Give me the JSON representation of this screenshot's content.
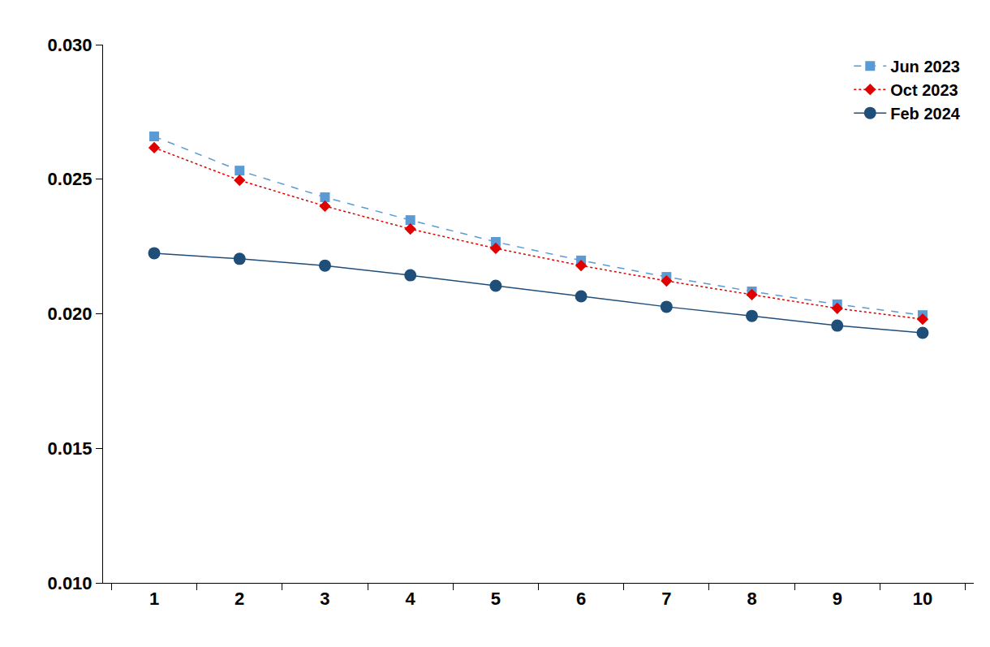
{
  "chart_data": {
    "type": "line",
    "categories": [
      "1",
      "2",
      "3",
      "4",
      "5",
      "6",
      "7",
      "8",
      "9",
      "10"
    ],
    "series": [
      {
        "name": "Jun 2023",
        "color": "#5b9bd5",
        "marker": "square",
        "line_style": "dash",
        "values": [
          0.02659,
          0.02532,
          0.02433,
          0.02348,
          0.02267,
          0.02198,
          0.02137,
          0.02083,
          0.02035,
          0.01995
        ]
      },
      {
        "name": "Oct 2023",
        "color": "#e00000",
        "marker": "diamond",
        "line_style": "dot",
        "values": [
          0.02617,
          0.02496,
          0.024,
          0.02315,
          0.02243,
          0.02179,
          0.02122,
          0.02071,
          0.0202,
          0.0198
        ]
      },
      {
        "name": "Feb 2024",
        "color": "#1f4e79",
        "marker": "circle",
        "line_style": "solid",
        "values": [
          0.02225,
          0.02204,
          0.02179,
          0.02143,
          0.02104,
          0.02065,
          0.02026,
          0.01992,
          0.01956,
          0.01929
        ]
      }
    ],
    "ylim": [
      0.01,
      0.03
    ],
    "yticks": [
      {
        "value": 0.01,
        "label": "0.010"
      },
      {
        "value": 0.015,
        "label": "0.015"
      },
      {
        "value": 0.02,
        "label": "0.020"
      },
      {
        "value": 0.025,
        "label": "0.025"
      },
      {
        "value": 0.03,
        "label": "0.030"
      }
    ],
    "grid": false,
    "legend": "top right"
  }
}
